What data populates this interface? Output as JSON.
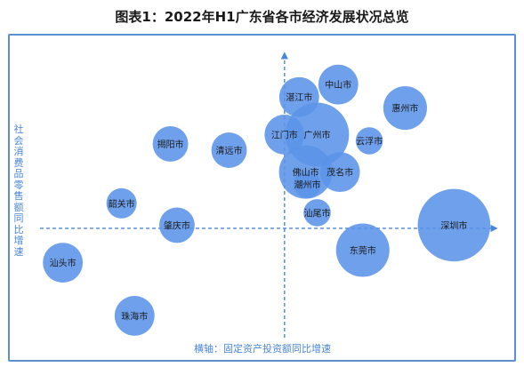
{
  "chart_data": {
    "type": "scatter",
    "title": "图表1：2022年H1广东省各市经济发展状况总览",
    "xlabel": "横轴：固定资产投资额同比增速",
    "ylabel": "社会消费品零售额同比增速",
    "points": [
      {
        "label": "深圳市",
        "x": 5.2,
        "y": 0.1,
        "size": 16
      },
      {
        "label": "广州市",
        "x": 1.0,
        "y": 3.0,
        "size": 12
      },
      {
        "label": "东莞市",
        "x": 2.4,
        "y": -0.7,
        "size": 8
      },
      {
        "label": "佛山市",
        "x": 0.65,
        "y": 1.8,
        "size": 8
      },
      {
        "label": "惠州市",
        "x": 3.7,
        "y": 3.85,
        "size": 5
      },
      {
        "label": "中山市",
        "x": 1.65,
        "y": 4.6,
        "size": 4
      },
      {
        "label": "湛江市",
        "x": 0.45,
        "y": 4.2,
        "size": 4
      },
      {
        "label": "江门市",
        "x": 0.0,
        "y": 3.0,
        "size": 4
      },
      {
        "label": "茂名市",
        "x": 1.7,
        "y": 1.8,
        "size": 4
      },
      {
        "label": "珠海市",
        "x": -4.6,
        "y": -2.8,
        "size": 4
      },
      {
        "label": "汕头市",
        "x": -6.8,
        "y": -1.1,
        "size": 4
      },
      {
        "label": "揭阳市",
        "x": -3.5,
        "y": 2.7,
        "size": 3
      },
      {
        "label": "清远市",
        "x": -1.7,
        "y": 2.5,
        "size": 3
      },
      {
        "label": "肇庆市",
        "x": -3.3,
        "y": 0.1,
        "size": 3
      },
      {
        "label": "云浮市",
        "x": 2.6,
        "y": 2.8,
        "size": 1.5
      },
      {
        "label": "韶关市",
        "x": -5.0,
        "y": 0.8,
        "size": 2
      },
      {
        "label": "汕尾市",
        "x": 1.0,
        "y": 0.5,
        "size": 1.5
      },
      {
        "label": "潮州市",
        "x": 0.7,
        "y": 1.4,
        "size": 1.5
      }
    ],
    "xlim": [
      -7.5,
      6.5
    ],
    "ylim": [
      -3.5,
      5.6
    ],
    "grid": false,
    "axis_color": "#4a86d8",
    "bubble_color": "#5b93e8"
  }
}
